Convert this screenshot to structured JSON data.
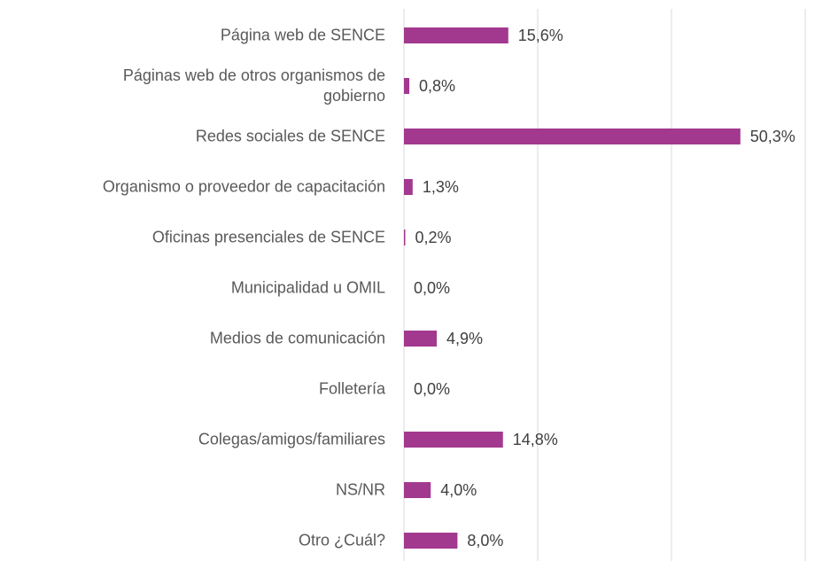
{
  "chart_data": {
    "type": "bar",
    "orientation": "horizontal",
    "categories": [
      "Página web de SENCE",
      "Páginas web de otros organismos de\ngobierno",
      "Redes sociales de SENCE",
      "Organismo o proveedor de capacitación",
      "Oficinas presenciales de SENCE",
      "Municipalidad u OMIL",
      "Medios de comunicación",
      "Folletería",
      "Colegas/amigos/familiares",
      "NS/NR",
      "Otro ¿Cuál?"
    ],
    "values": [
      15.6,
      0.8,
      50.3,
      1.3,
      0.2,
      0.0,
      4.9,
      0.0,
      14.8,
      4.0,
      8.0
    ],
    "value_labels": [
      "15,6%",
      "0,8%",
      "50,3%",
      "1,3%",
      "0,2%",
      "0,0%",
      "4,9%",
      "0,0%",
      "14,8%",
      "4,0%",
      "8,0%"
    ],
    "color": "#a3388f",
    "xlim": [
      0,
      60
    ],
    "xticks": [
      0,
      20,
      40,
      60
    ],
    "grid": true
  }
}
